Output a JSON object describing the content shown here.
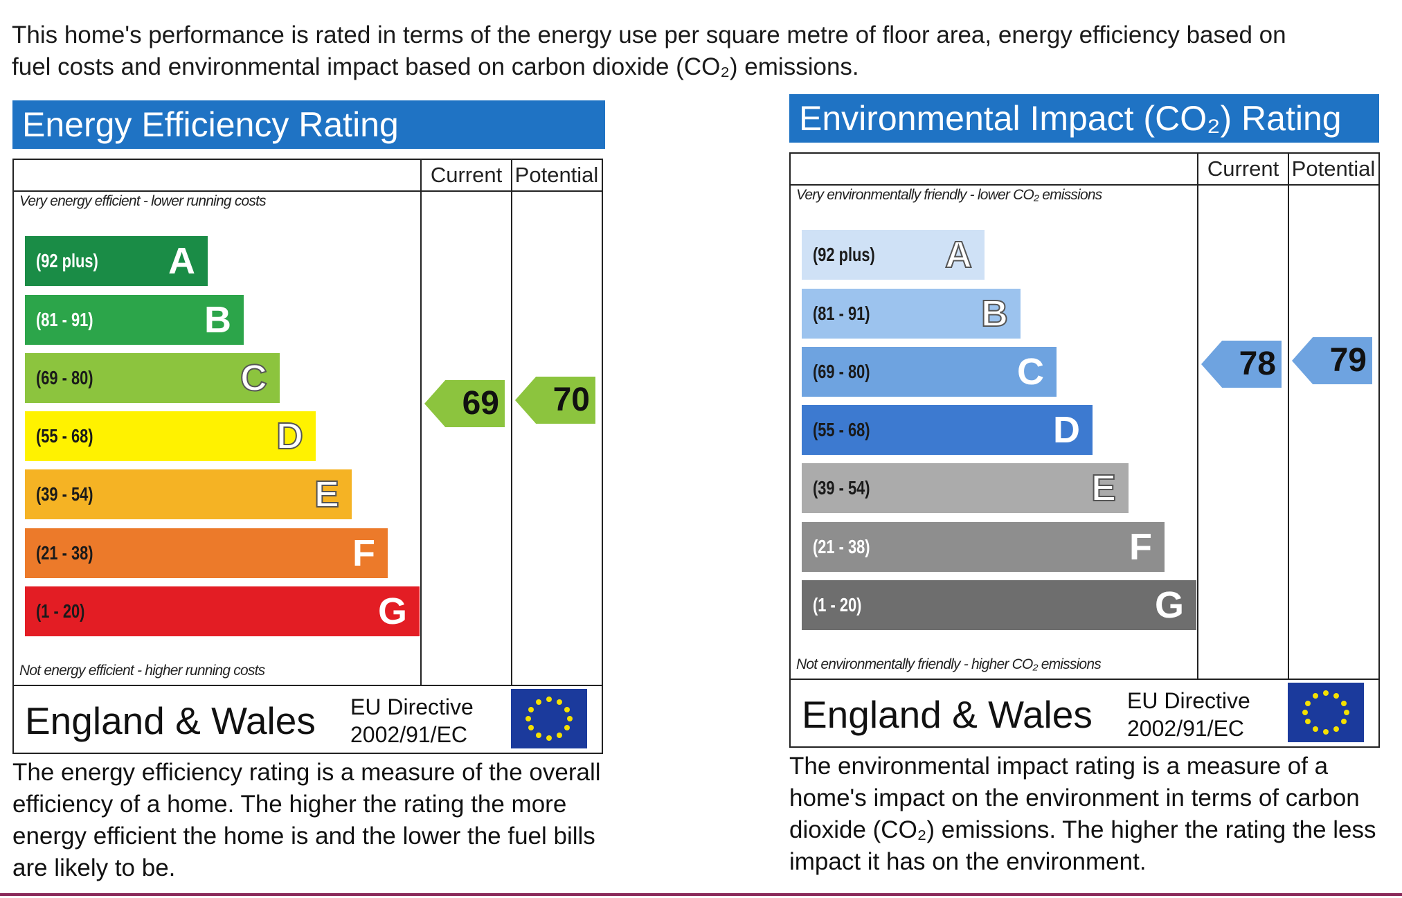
{
  "intro": {
    "line1": "This home's performance is rated in terms of the energy use per square metre of floor area, energy efficiency based on",
    "line2": "fuel costs and environmental impact based on carbon dioxide (CO₂) emissions."
  },
  "energy": {
    "title": "Energy Efficiency Rating",
    "col_current": "Current",
    "col_potential": "Potential",
    "top_note": "Very energy efficient - lower running costs",
    "bottom_note": "Not energy efficient - higher running costs",
    "bands": [
      {
        "range": "(92 plus)",
        "letter": "A",
        "color": "#1a8c46",
        "text": "#ffffff"
      },
      {
        "range": "(81 - 91)",
        "letter": "B",
        "color": "#2ca54a",
        "text": "#ffffff"
      },
      {
        "range": "(69 - 80)",
        "letter": "C",
        "color": "#8cc43e",
        "text": "#1a1a1a"
      },
      {
        "range": "(55 - 68)",
        "letter": "D",
        "color": "#fff200",
        "text": "#1a1a1a"
      },
      {
        "range": "(39 - 54)",
        "letter": "E",
        "color": "#f5b324",
        "text": "#1a1a1a"
      },
      {
        "range": "(21 - 38)",
        "letter": "F",
        "color": "#ec7a2a",
        "text": "#1a1a1a"
      },
      {
        "range": "(1 - 20)",
        "letter": "G",
        "color": "#e31d24",
        "text": "#1a1a1a"
      }
    ],
    "current": 69,
    "potential": 70,
    "arrow_color": "#8cc43e",
    "region": "England & Wales",
    "directive_line1": "EU Directive",
    "directive_line2": "2002/91/EC",
    "description": "The energy efficiency rating is a measure of the overall efficiency of a home. The higher the rating the more energy efficient the home is and the lower the fuel bills are likely to be."
  },
  "environment": {
    "title": "Environmental Impact (CO₂) Rating",
    "col_current": "Current",
    "col_potential": "Potential",
    "top_note": "Very environmentally friendly - lower CO₂ emissions",
    "bottom_note": "Not environmentally friendly - higher CO₂ emissions",
    "bands": [
      {
        "range": "(92 plus)",
        "letter": "A",
        "color": "#cfe1f6",
        "text": "#1a1a1a"
      },
      {
        "range": "(81 - 91)",
        "letter": "B",
        "color": "#9cc3ee",
        "text": "#1a1a1a"
      },
      {
        "range": "(69 - 80)",
        "letter": "C",
        "color": "#6ea3e0",
        "text": "#1a1a1a"
      },
      {
        "range": "(55 - 68)",
        "letter": "D",
        "color": "#3d7ad0",
        "text": "#1a1a1a"
      },
      {
        "range": "(39 - 54)",
        "letter": "E",
        "color": "#ababab",
        "text": "#1a1a1a"
      },
      {
        "range": "(21 - 38)",
        "letter": "F",
        "color": "#8e8e8e",
        "text": "#ffffff"
      },
      {
        "range": "(1 - 20)",
        "letter": "G",
        "color": "#6e6e6e",
        "text": "#ffffff"
      }
    ],
    "current": 78,
    "potential": 79,
    "arrow_color": "#6ea3e0",
    "region": "England & Wales",
    "directive_line1": "EU Directive",
    "directive_line2": "2002/91/EC",
    "description": "The environmental impact rating is a measure of a home's impact on the environment in terms of carbon dioxide (CO₂) emissions. The higher the rating the less impact it has on the environment."
  }
}
